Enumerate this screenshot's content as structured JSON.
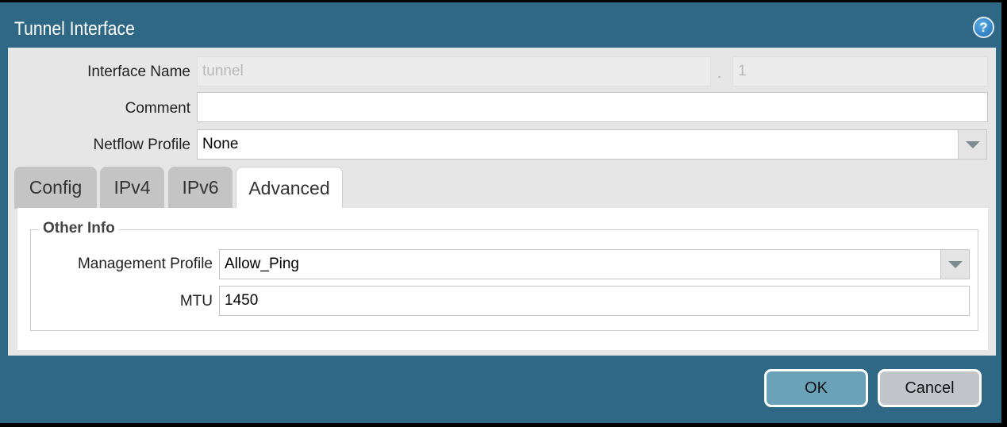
{
  "dialog": {
    "title": "Tunnel Interface",
    "help_icon": "help-icon"
  },
  "form": {
    "interface_name_label": "Interface Name",
    "interface_name_value": "tunnel",
    "separator": ".",
    "interface_number": "1",
    "comment_label": "Comment",
    "comment_value": "",
    "netflow_label": "Netflow Profile",
    "netflow_value": "None"
  },
  "tabs": [
    {
      "label": "Config"
    },
    {
      "label": "IPv4"
    },
    {
      "label": "IPv6"
    },
    {
      "label": "Advanced",
      "active": true
    }
  ],
  "advanced": {
    "section_title": "Other Info",
    "mgmt_label": "Management Profile",
    "mgmt_value": "Allow_Ping",
    "mtu_label": "MTU",
    "mtu_value": "1450"
  },
  "buttons": {
    "ok": "OK",
    "cancel": "Cancel"
  },
  "colors": {
    "titlebar": "#2f6885",
    "ok_button": "#6aa3b9",
    "cancel_button": "#c2c6cb"
  }
}
